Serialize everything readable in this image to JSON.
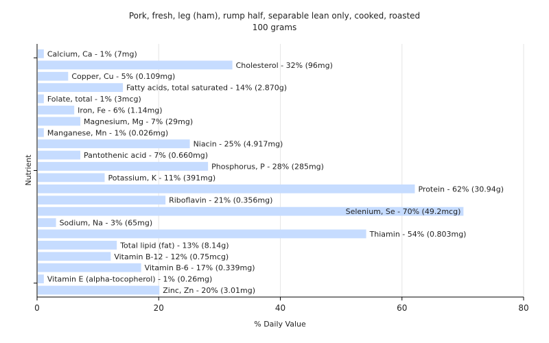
{
  "chart_data": {
    "type": "bar",
    "orientation": "horizontal",
    "title": "Pork, fresh, leg (ham), rump half, separable lean only, cooked, roasted",
    "subtitle": "100 grams",
    "xlabel": "% Daily Value",
    "ylabel": "Nutrient",
    "xlim": [
      0,
      80
    ],
    "xticks": [
      0,
      20,
      40,
      60,
      80
    ],
    "grid": true,
    "bar_color": "#c6dcff",
    "categories": [
      "Calcium, Ca - 1% (7mg)",
      "Cholesterol - 32% (96mg)",
      "Copper, Cu - 5% (0.109mg)",
      "Fatty acids, total saturated - 14% (2.870g)",
      "Folate, total - 1% (3mcg)",
      "Iron, Fe - 6% (1.14mg)",
      "Magnesium, Mg - 7% (29mg)",
      "Manganese, Mn - 1% (0.026mg)",
      "Niacin - 25% (4.917mg)",
      "Pantothenic acid - 7% (0.660mg)",
      "Phosphorus, P - 28% (285mg)",
      "Potassium, K - 11% (391mg)",
      "Protein - 62% (30.94g)",
      "Riboflavin - 21% (0.356mg)",
      "Selenium, Se - 70% (49.2mcg)",
      "Sodium, Na - 3% (65mg)",
      "Thiamin - 54% (0.803mg)",
      "Total lipid (fat) - 13% (8.14g)",
      "Vitamin B-12 - 12% (0.75mcg)",
      "Vitamin B-6 - 17% (0.339mg)",
      "Vitamin E (alpha-tocopherol) - 1% (0.26mg)",
      "Zinc, Zn - 20% (3.01mg)"
    ],
    "values": [
      1,
      32,
      5,
      14,
      1,
      6,
      7,
      1,
      25,
      7,
      28,
      11,
      62,
      21,
      70,
      3,
      54,
      13,
      12,
      17,
      1,
      20
    ]
  }
}
